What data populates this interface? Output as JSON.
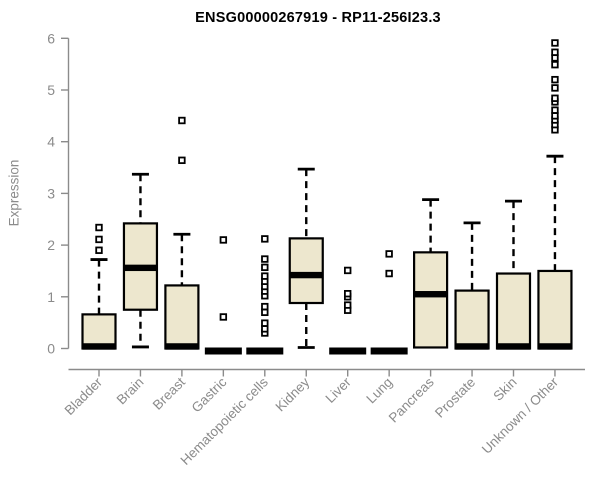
{
  "chart_data": {
    "type": "boxplot",
    "title": "ENSG00000267919 - RP11-256I23.3",
    "ylabel": "Expression",
    "xlabel": "",
    "ylim": [
      0,
      6
    ],
    "yticks": [
      0,
      1,
      2,
      3,
      4,
      5,
      6
    ],
    "grid": false,
    "legend": false,
    "x_label_rotation_deg": 45,
    "categories": [
      "Bladder",
      "Brain",
      "Breast",
      "Gastric",
      "Hematopoietic cells",
      "Kidney",
      "Liver",
      "Lung",
      "Pancreas",
      "Prostate",
      "Skin",
      "Unknown / Other"
    ],
    "series": [
      {
        "name": "Bladder",
        "low": 0,
        "q1": 0,
        "median": 0.04,
        "q3": 0.66,
        "high": 1.72,
        "outliers": [
          1.9,
          2.11,
          2.34
        ]
      },
      {
        "name": "Brain",
        "low": 0.03,
        "q1": 0.75,
        "median": 1.56,
        "q3": 2.42,
        "high": 3.37,
        "outliers": []
      },
      {
        "name": "Breast",
        "low": 0,
        "q1": 0,
        "median": 0.04,
        "q3": 1.22,
        "high": 2.21,
        "outliers": [
          3.64,
          4.41
        ]
      },
      {
        "name": "Gastric",
        "low": 0,
        "q1": 0,
        "median": 0,
        "q3": 0,
        "high": 0,
        "outliers": [
          0.61,
          2.1
        ]
      },
      {
        "name": "Hematopoietic cells",
        "low": 0,
        "q1": 0,
        "median": 0,
        "q3": 0,
        "high": 0,
        "outliers": [
          0.3,
          0.38,
          0.49,
          0.7,
          0.81,
          1.02,
          1.11,
          1.2,
          1.3,
          1.4,
          1.57,
          1.73,
          2.12
        ]
      },
      {
        "name": "Kidney",
        "low": 0.02,
        "q1": 0.88,
        "median": 1.42,
        "q3": 2.13,
        "high": 3.47,
        "outliers": []
      },
      {
        "name": "Liver",
        "low": 0,
        "q1": 0,
        "median": 0,
        "q3": 0,
        "high": 0,
        "outliers": [
          0.74,
          0.84,
          1.0,
          1.06,
          1.51
        ]
      },
      {
        "name": "Lung",
        "low": 0,
        "q1": 0,
        "median": 0,
        "q3": 0,
        "high": 0,
        "outliers": [
          1.45,
          1.83
        ]
      },
      {
        "name": "Pancreas",
        "low": 0.02,
        "q1": 0.02,
        "median": 1.05,
        "q3": 1.86,
        "high": 2.88,
        "outliers": []
      },
      {
        "name": "Prostate",
        "low": 0,
        "q1": 0,
        "median": 0.04,
        "q3": 1.12,
        "high": 2.43,
        "outliers": []
      },
      {
        "name": "Skin",
        "low": 0,
        "q1": 0,
        "median": 0.04,
        "q3": 1.45,
        "high": 2.85,
        "outliers": []
      },
      {
        "name": "Unknown / Other",
        "low": 0,
        "q1": 0,
        "median": 0.04,
        "q3": 1.5,
        "high": 3.72,
        "outliers": [
          4.23,
          4.33,
          4.42,
          4.5,
          4.61,
          4.77,
          4.84,
          5.04,
          5.2,
          5.49,
          5.62,
          5.73,
          5.91
        ]
      }
    ],
    "colors": {
      "box_fill": "#EDE7CE",
      "box_stroke": "#000000",
      "axis": "#8B8B8B",
      "labels": "#8B8B8B",
      "title": "#000000",
      "background": "#FFFFFF"
    }
  }
}
